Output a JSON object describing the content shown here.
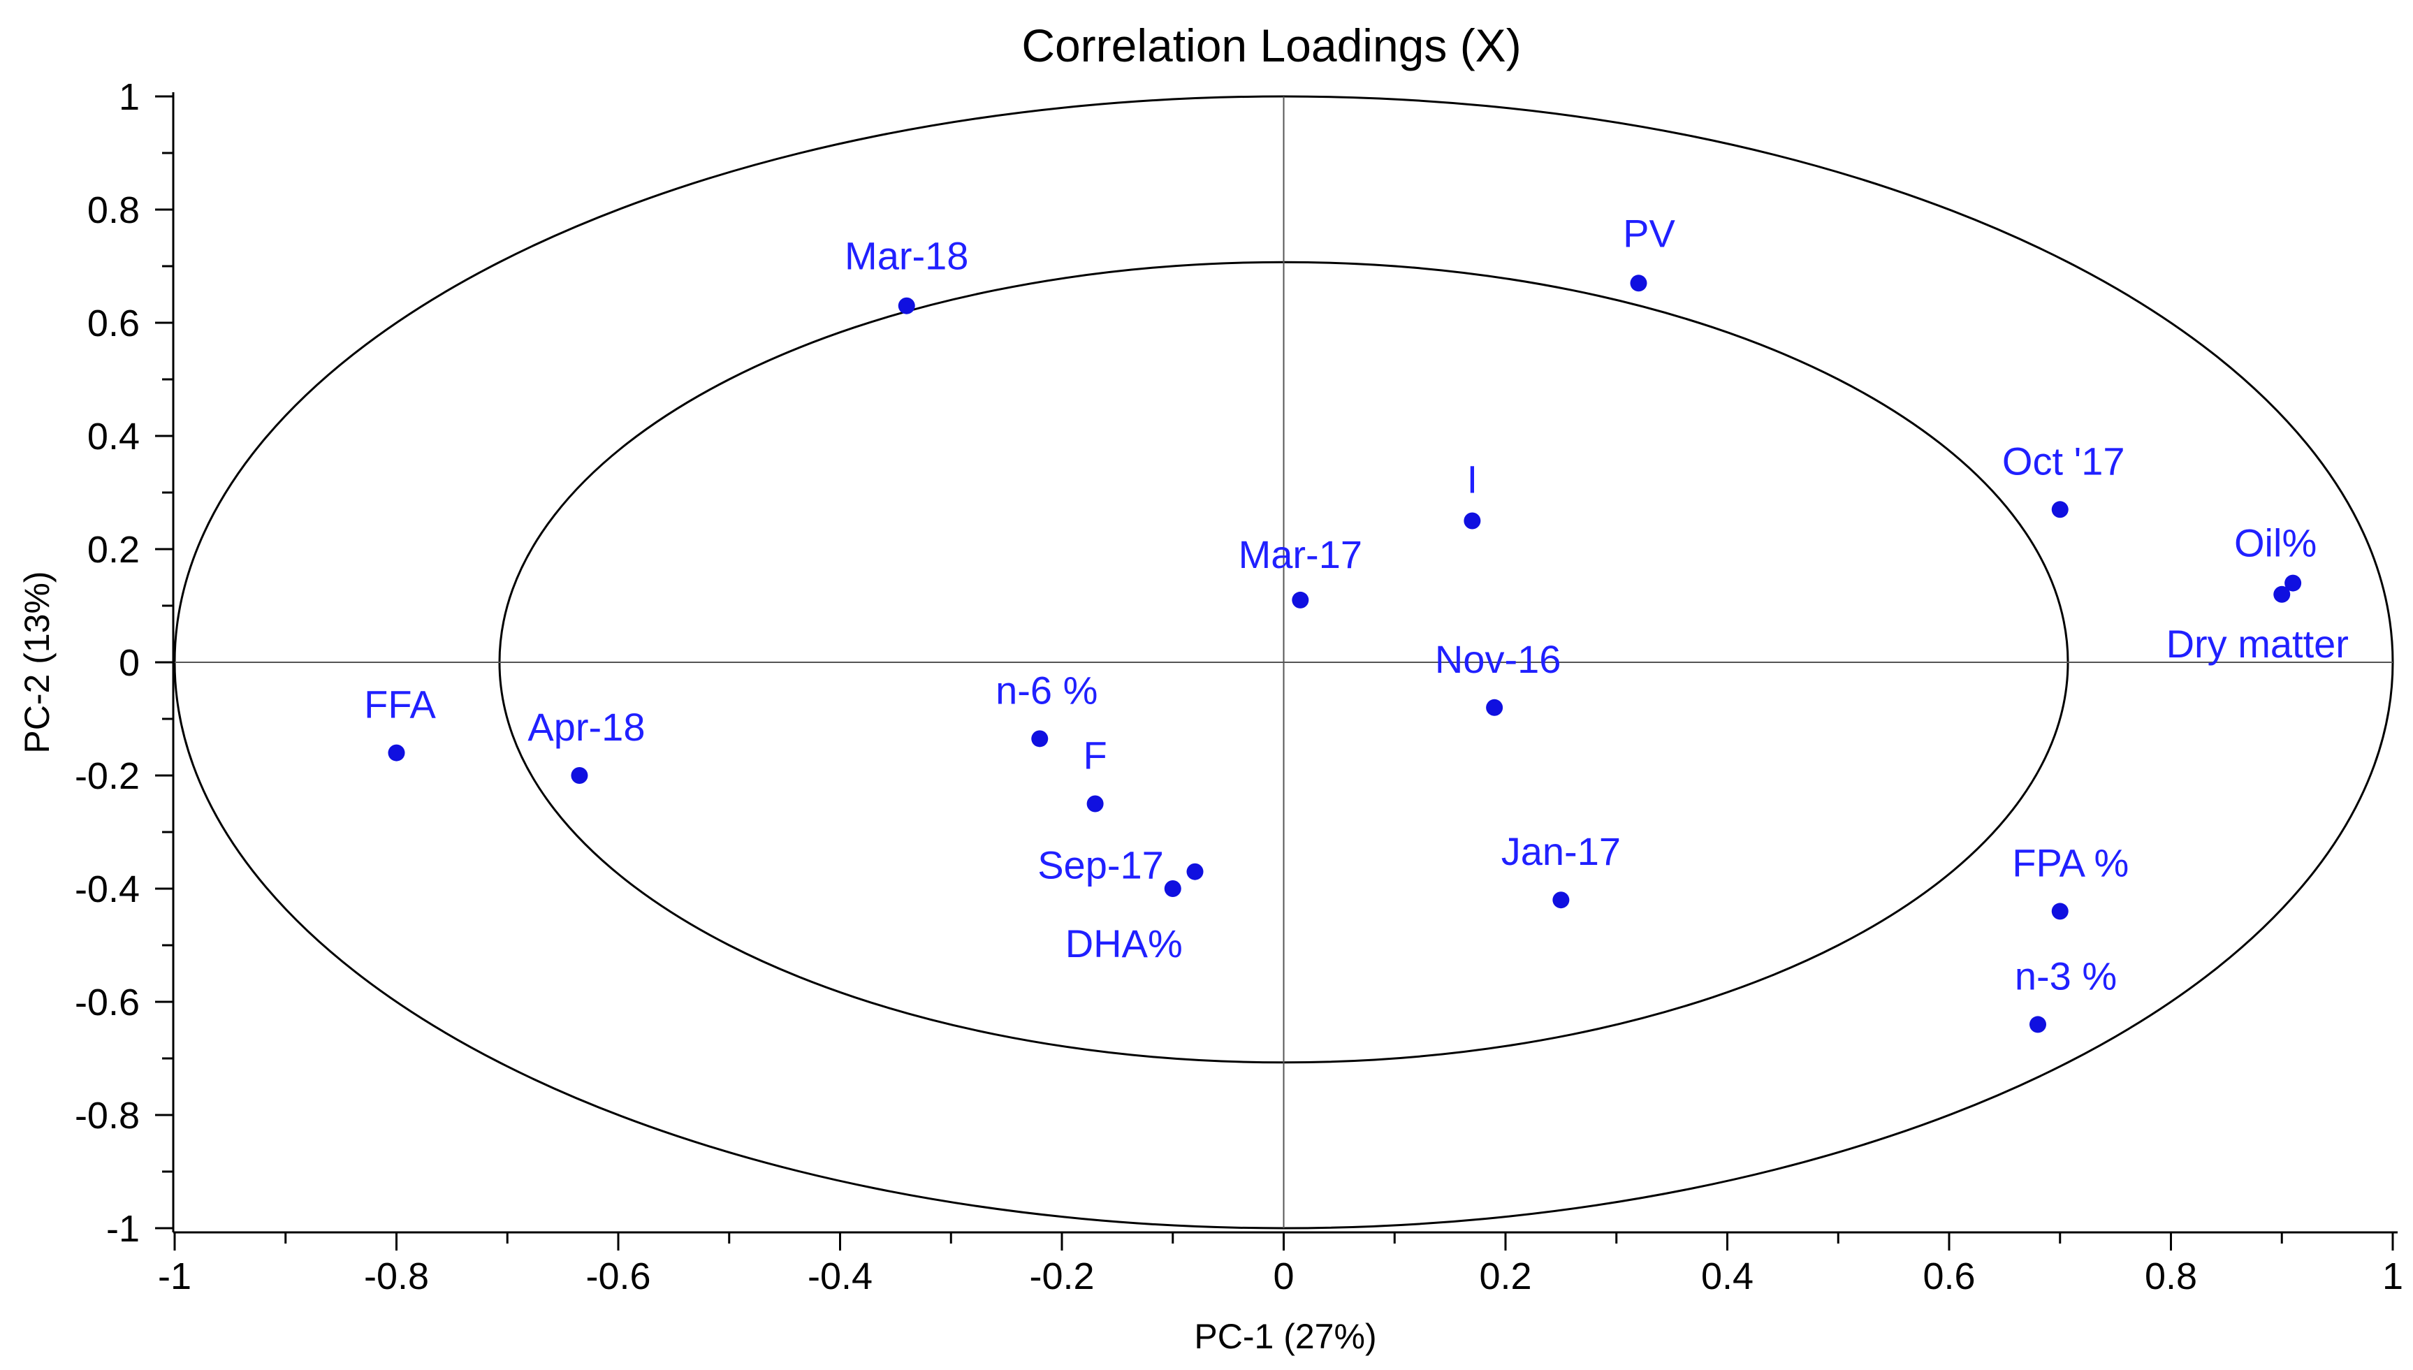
{
  "chart_data": {
    "type": "scatter",
    "title": "Correlation Loadings (X)",
    "xlabel": "PC-1 (27%)",
    "ylabel": "PC-2 (13%)",
    "xlim": [
      -1,
      1
    ],
    "ylim": [
      -1,
      1
    ],
    "xticks": [
      "-1",
      "-0.8",
      "-0.6",
      "-0.4",
      "-0.2",
      "0",
      "0.2",
      "0.4",
      "0.6",
      "0.8",
      "1"
    ],
    "xtick_values": [
      -1,
      -0.8,
      -0.6,
      -0.4,
      -0.2,
      0,
      0.2,
      0.4,
      0.6,
      0.8,
      1
    ],
    "yticks": [
      "1",
      "0.8",
      "0.6",
      "0.4",
      "0.2",
      "0",
      "-0.2",
      "-0.4",
      "-0.6",
      "-0.8",
      "-1"
    ],
    "ytick_values": [
      1,
      0.8,
      0.6,
      0.4,
      0.2,
      0,
      -0.2,
      -0.4,
      -0.6,
      -0.8,
      -1
    ],
    "grid": false,
    "reference_circles": [
      1.0,
      0.7071
    ],
    "point_color": "#1010e0",
    "label_color": "#2020ff",
    "points": [
      {
        "label": "Mar-18",
        "x": -0.34,
        "y": 0.63
      },
      {
        "label": "PV",
        "x": 0.32,
        "y": 0.67
      },
      {
        "label": "I",
        "x": 0.17,
        "y": 0.25
      },
      {
        "label": "Oct '17",
        "x": 0.7,
        "y": 0.27
      },
      {
        "label": "Oil%",
        "x": 0.91,
        "y": 0.14
      },
      {
        "label": "Dry matter",
        "x": 0.9,
        "y": 0.12
      },
      {
        "label": "Mar-17",
        "x": 0.015,
        "y": 0.11
      },
      {
        "label": "Nov-16",
        "x": 0.19,
        "y": -0.08
      },
      {
        "label": "FFA",
        "x": -0.8,
        "y": -0.16
      },
      {
        "label": "Apr-18",
        "x": -0.635,
        "y": -0.2
      },
      {
        "label": "n-6 %",
        "x": -0.22,
        "y": -0.135
      },
      {
        "label": "F",
        "x": -0.17,
        "y": -0.25
      },
      {
        "label": "Sep-17",
        "x": -0.08,
        "y": -0.37
      },
      {
        "label": "DHA%",
        "x": -0.1,
        "y": -0.4
      },
      {
        "label": "Jan-17",
        "x": 0.25,
        "y": -0.42
      },
      {
        "label": "FPA %",
        "x": 0.7,
        "y": -0.44
      },
      {
        "label": "n-3 %",
        "x": 0.68,
        "y": -0.64
      }
    ]
  }
}
